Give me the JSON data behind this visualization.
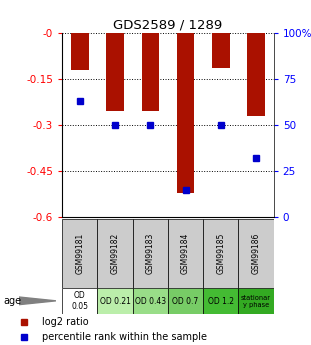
{
  "title": "GDS2589 / 1289",
  "samples": [
    "GSM99181",
    "GSM99182",
    "GSM99183",
    "GSM99184",
    "GSM99185",
    "GSM99186"
  ],
  "log2_ratio": [
    -0.12,
    -0.255,
    -0.255,
    -0.52,
    -0.115,
    -0.27
  ],
  "percentile_rank": [
    0.63,
    0.5,
    0.5,
    0.15,
    0.5,
    0.32
  ],
  "ylim_left": [
    -0.6,
    0.0
  ],
  "ylim_right": [
    0,
    100
  ],
  "yticks_left": [
    0.0,
    -0.15,
    -0.3,
    -0.45,
    -0.6
  ],
  "ytick_left_labels": [
    "-0",
    "-0.15",
    "-0.3",
    "-0.45",
    "-0.6"
  ],
  "yticks_right": [
    0,
    25,
    50,
    75,
    100
  ],
  "ytick_right_labels": [
    "0",
    "25",
    "50",
    "75",
    "100%"
  ],
  "bar_color": "#aa1100",
  "dot_color": "#0000cc",
  "age_labels": [
    "OD\n0.05",
    "OD 0.21",
    "OD 0.43",
    "OD 0.7",
    "OD 1.2",
    "stationar\ny phase"
  ],
  "age_bg_colors": [
    "#ffffff",
    "#bbeeaa",
    "#99dd88",
    "#77cc66",
    "#44bb33",
    "#33aa22"
  ],
  "sample_bg_color": "#cccccc",
  "legend_log2": "log2 ratio",
  "legend_pct": "percentile rank within the sample",
  "bar_width": 0.5
}
